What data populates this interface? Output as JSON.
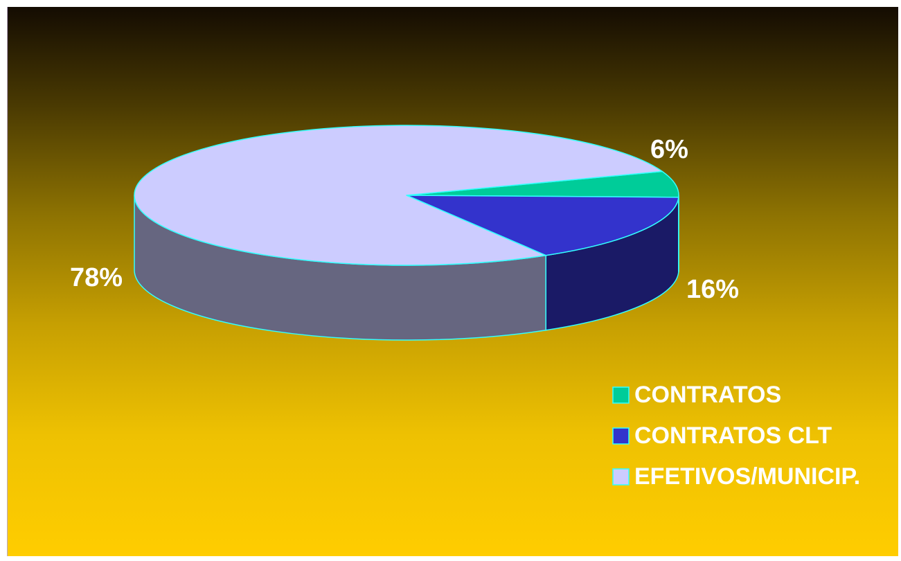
{
  "chart_data": {
    "type": "pie",
    "style": "3d",
    "labels": [
      "CONTRATOS",
      "CONTRATOS CLT",
      "EFETIVOS/MUNICIP."
    ],
    "values": [
      6,
      16,
      78
    ],
    "value_labels": [
      "6%",
      "16%",
      "78%"
    ],
    "colors": [
      "#00cc99",
      "#3333cc",
      "#ccccff"
    ],
    "side_colors": [
      "#007a5c",
      "#1a1a66",
      "#666680"
    ],
    "edge_color": "#33ffff",
    "legend_position": "bottom-right"
  }
}
